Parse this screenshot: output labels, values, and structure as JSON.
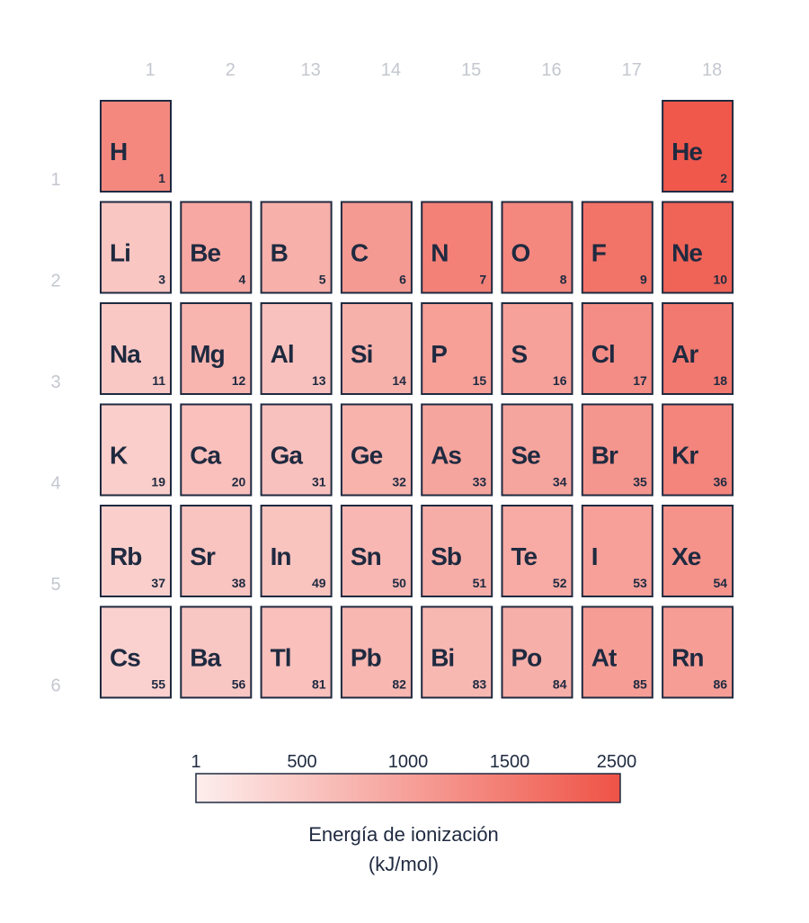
{
  "chart_data": {
    "type": "heatmap",
    "title": "",
    "column_labels": [
      "1",
      "2",
      "13",
      "14",
      "15",
      "16",
      "17",
      "18"
    ],
    "row_labels": [
      "1",
      "2",
      "3",
      "4",
      "5",
      "6"
    ],
    "cells": [
      {
        "symbol": "H",
        "number": "1",
        "group": "1",
        "period": "1",
        "value": 1312
      },
      {
        "symbol": "He",
        "number": "2",
        "group": "18",
        "period": "1",
        "value": 2372
      },
      {
        "symbol": "Li",
        "number": "3",
        "group": "1",
        "period": "2",
        "value": 520
      },
      {
        "symbol": "Be",
        "number": "4",
        "group": "2",
        "period": "2",
        "value": 900
      },
      {
        "symbol": "B",
        "number": "5",
        "group": "13",
        "period": "2",
        "value": 801
      },
      {
        "symbol": "C",
        "number": "6",
        "group": "14",
        "period": "2",
        "value": 1086
      },
      {
        "symbol": "N",
        "number": "7",
        "group": "15",
        "period": "2",
        "value": 1402
      },
      {
        "symbol": "O",
        "number": "8",
        "group": "16",
        "period": "2",
        "value": 1314
      },
      {
        "symbol": "F",
        "number": "9",
        "group": "17",
        "period": "2",
        "value": 1681
      },
      {
        "symbol": "Ne",
        "number": "10",
        "group": "18",
        "period": "2",
        "value": 2081
      },
      {
        "symbol": "Na",
        "number": "11",
        "group": "1",
        "period": "3",
        "value": 496
      },
      {
        "symbol": "Mg",
        "number": "12",
        "group": "2",
        "period": "3",
        "value": 738
      },
      {
        "symbol": "Al",
        "number": "13",
        "group": "13",
        "period": "3",
        "value": 578
      },
      {
        "symbol": "Si",
        "number": "14",
        "group": "14",
        "period": "3",
        "value": 786
      },
      {
        "symbol": "P",
        "number": "15",
        "group": "15",
        "period": "3",
        "value": 1012
      },
      {
        "symbol": "S",
        "number": "16",
        "group": "16",
        "period": "3",
        "value": 1000
      },
      {
        "symbol": "Cl",
        "number": "17",
        "group": "17",
        "period": "3",
        "value": 1251
      },
      {
        "symbol": "Ar",
        "number": "18",
        "group": "18",
        "period": "3",
        "value": 1521
      },
      {
        "symbol": "K",
        "number": "19",
        "group": "1",
        "period": "4",
        "value": 419
      },
      {
        "symbol": "Ca",
        "number": "20",
        "group": "2",
        "period": "4",
        "value": 590
      },
      {
        "symbol": "Ga",
        "number": "31",
        "group": "13",
        "period": "4",
        "value": 579
      },
      {
        "symbol": "Ge",
        "number": "32",
        "group": "14",
        "period": "4",
        "value": 762
      },
      {
        "symbol": "As",
        "number": "33",
        "group": "15",
        "period": "4",
        "value": 947
      },
      {
        "symbol": "Se",
        "number": "34",
        "group": "16",
        "period": "4",
        "value": 941
      },
      {
        "symbol": "Br",
        "number": "35",
        "group": "17",
        "period": "4",
        "value": 1140
      },
      {
        "symbol": "Kr",
        "number": "36",
        "group": "18",
        "period": "4",
        "value": 1351
      },
      {
        "symbol": "Rb",
        "number": "37",
        "group": "1",
        "period": "5",
        "value": 403
      },
      {
        "symbol": "Sr",
        "number": "38",
        "group": "2",
        "period": "5",
        "value": 549
      },
      {
        "symbol": "In",
        "number": "49",
        "group": "13",
        "period": "5",
        "value": 558
      },
      {
        "symbol": "Sn",
        "number": "50",
        "group": "14",
        "period": "5",
        "value": 709
      },
      {
        "symbol": "Sb",
        "number": "51",
        "group": "15",
        "period": "5",
        "value": 834
      },
      {
        "symbol": "Te",
        "number": "52",
        "group": "16",
        "period": "5",
        "value": 869
      },
      {
        "symbol": "I",
        "number": "53",
        "group": "17",
        "period": "5",
        "value": 1008
      },
      {
        "symbol": "Xe",
        "number": "54",
        "group": "18",
        "period": "5",
        "value": 1170
      },
      {
        "symbol": "Cs",
        "number": "55",
        "group": "1",
        "period": "6",
        "value": 376
      },
      {
        "symbol": "Ba",
        "number": "56",
        "group": "2",
        "period": "6",
        "value": 503
      },
      {
        "symbol": "Tl",
        "number": "81",
        "group": "13",
        "period": "6",
        "value": 589
      },
      {
        "symbol": "Pb",
        "number": "82",
        "group": "14",
        "period": "6",
        "value": 716
      },
      {
        "symbol": "Bi",
        "number": "83",
        "group": "15",
        "period": "6",
        "value": 703
      },
      {
        "symbol": "Po",
        "number": "84",
        "group": "16",
        "period": "6",
        "value": 812
      },
      {
        "symbol": "At",
        "number": "85",
        "group": "17",
        "period": "6",
        "value": 1037
      },
      {
        "symbol": "Rn",
        "number": "86",
        "group": "18",
        "period": "6",
        "value": 1037
      }
    ],
    "color_scale": {
      "ticks": [
        "1",
        "500",
        "1000",
        "1500",
        "2500"
      ],
      "tick_values": [
        1,
        500,
        1000,
        1500,
        2500
      ],
      "min_color": "#fdeeed",
      "max_color": "#ef5346"
    },
    "legend_title": "Energía de ionización",
    "legend_unit": "(kJ/mol)",
    "colors": {
      "cell_border": "#1f2a40",
      "axis_label": "#c4c7cf",
      "text": "#1f2a40"
    }
  }
}
